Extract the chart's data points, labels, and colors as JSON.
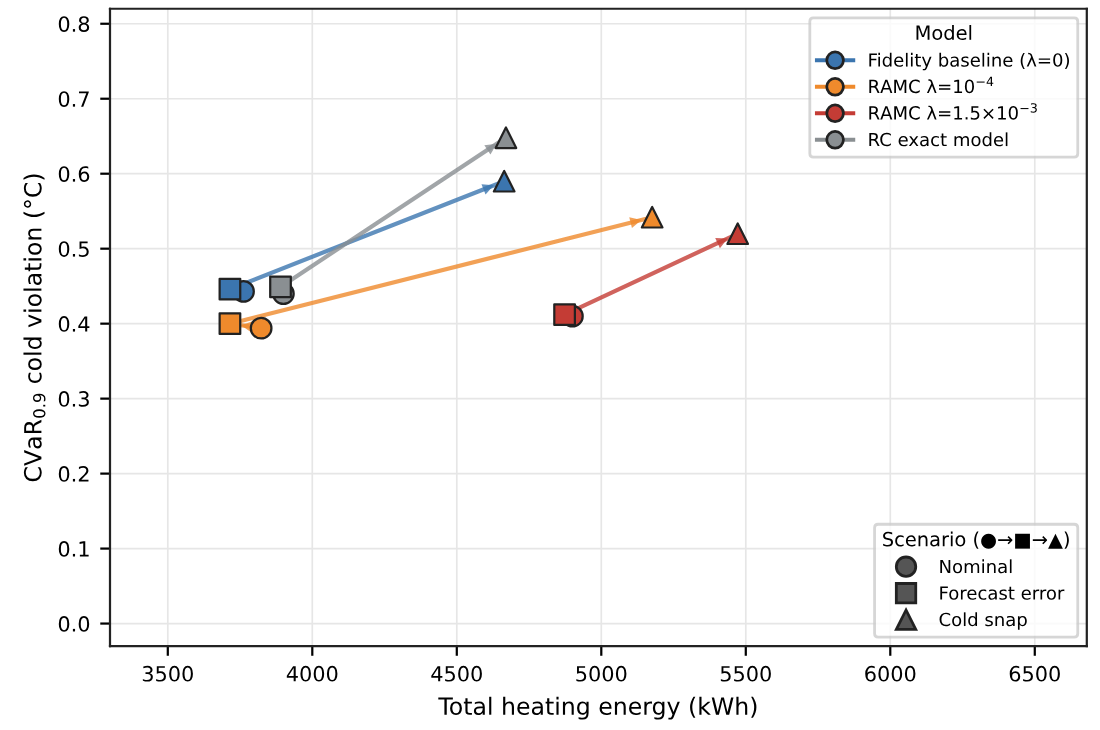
{
  "chart_data": {
    "type": "line",
    "xlabel": "Total heating energy (kWh)",
    "ylabel": "CVaR$_{0.9}$ cold violation (°C)",
    "legend_title": "Model",
    "xlim": [
      3300,
      6680
    ],
    "xticks": [
      3500,
      4000,
      4500,
      5000,
      5500,
      6000,
      6500
    ],
    "ylim": [
      -0.03,
      0.82
    ],
    "yticks": [
      {
        "value": 0,
        "label": "0.0"
      },
      0.1,
      0.2,
      0.3,
      0.4,
      0.5,
      0.6,
      0.7,
      0.8
    ],
    "grid": true,
    "legend": "top right",
    "marker": "circle",
    "series": [
      {
        "name": "Fidelity baseline (λ=0)",
        "color": "#3b75af",
        "x": [
          3762,
          3715,
          4664
        ],
        "values": [
          0.443,
          0.446,
          0.59
        ]
      },
      {
        "name": "RAMC λ=10$^{−4}$",
        "color": "#ef8a2c",
        "x": [
          3823,
          3715,
          5176
        ],
        "values": [
          0.394,
          0.4,
          0.542
        ]
      },
      {
        "name": "RAMC λ=1.5×10$^{−3}$",
        "color": "#c43c35",
        "x": [
          4900,
          4873,
          5472
        ],
        "values": [
          0.41,
          0.412,
          0.52
        ]
      },
      {
        "name": "RC exact model",
        "color": "#8a8f92",
        "x": [
          3900,
          3890,
          4670
        ],
        "values": [
          0.44,
          0.449,
          0.648
        ]
      }
    ],
    "annotations": [
      "Scenario (●→■→▲)",
      "Nominal",
      "Forecast error",
      "Cold snap"
    ]
  }
}
